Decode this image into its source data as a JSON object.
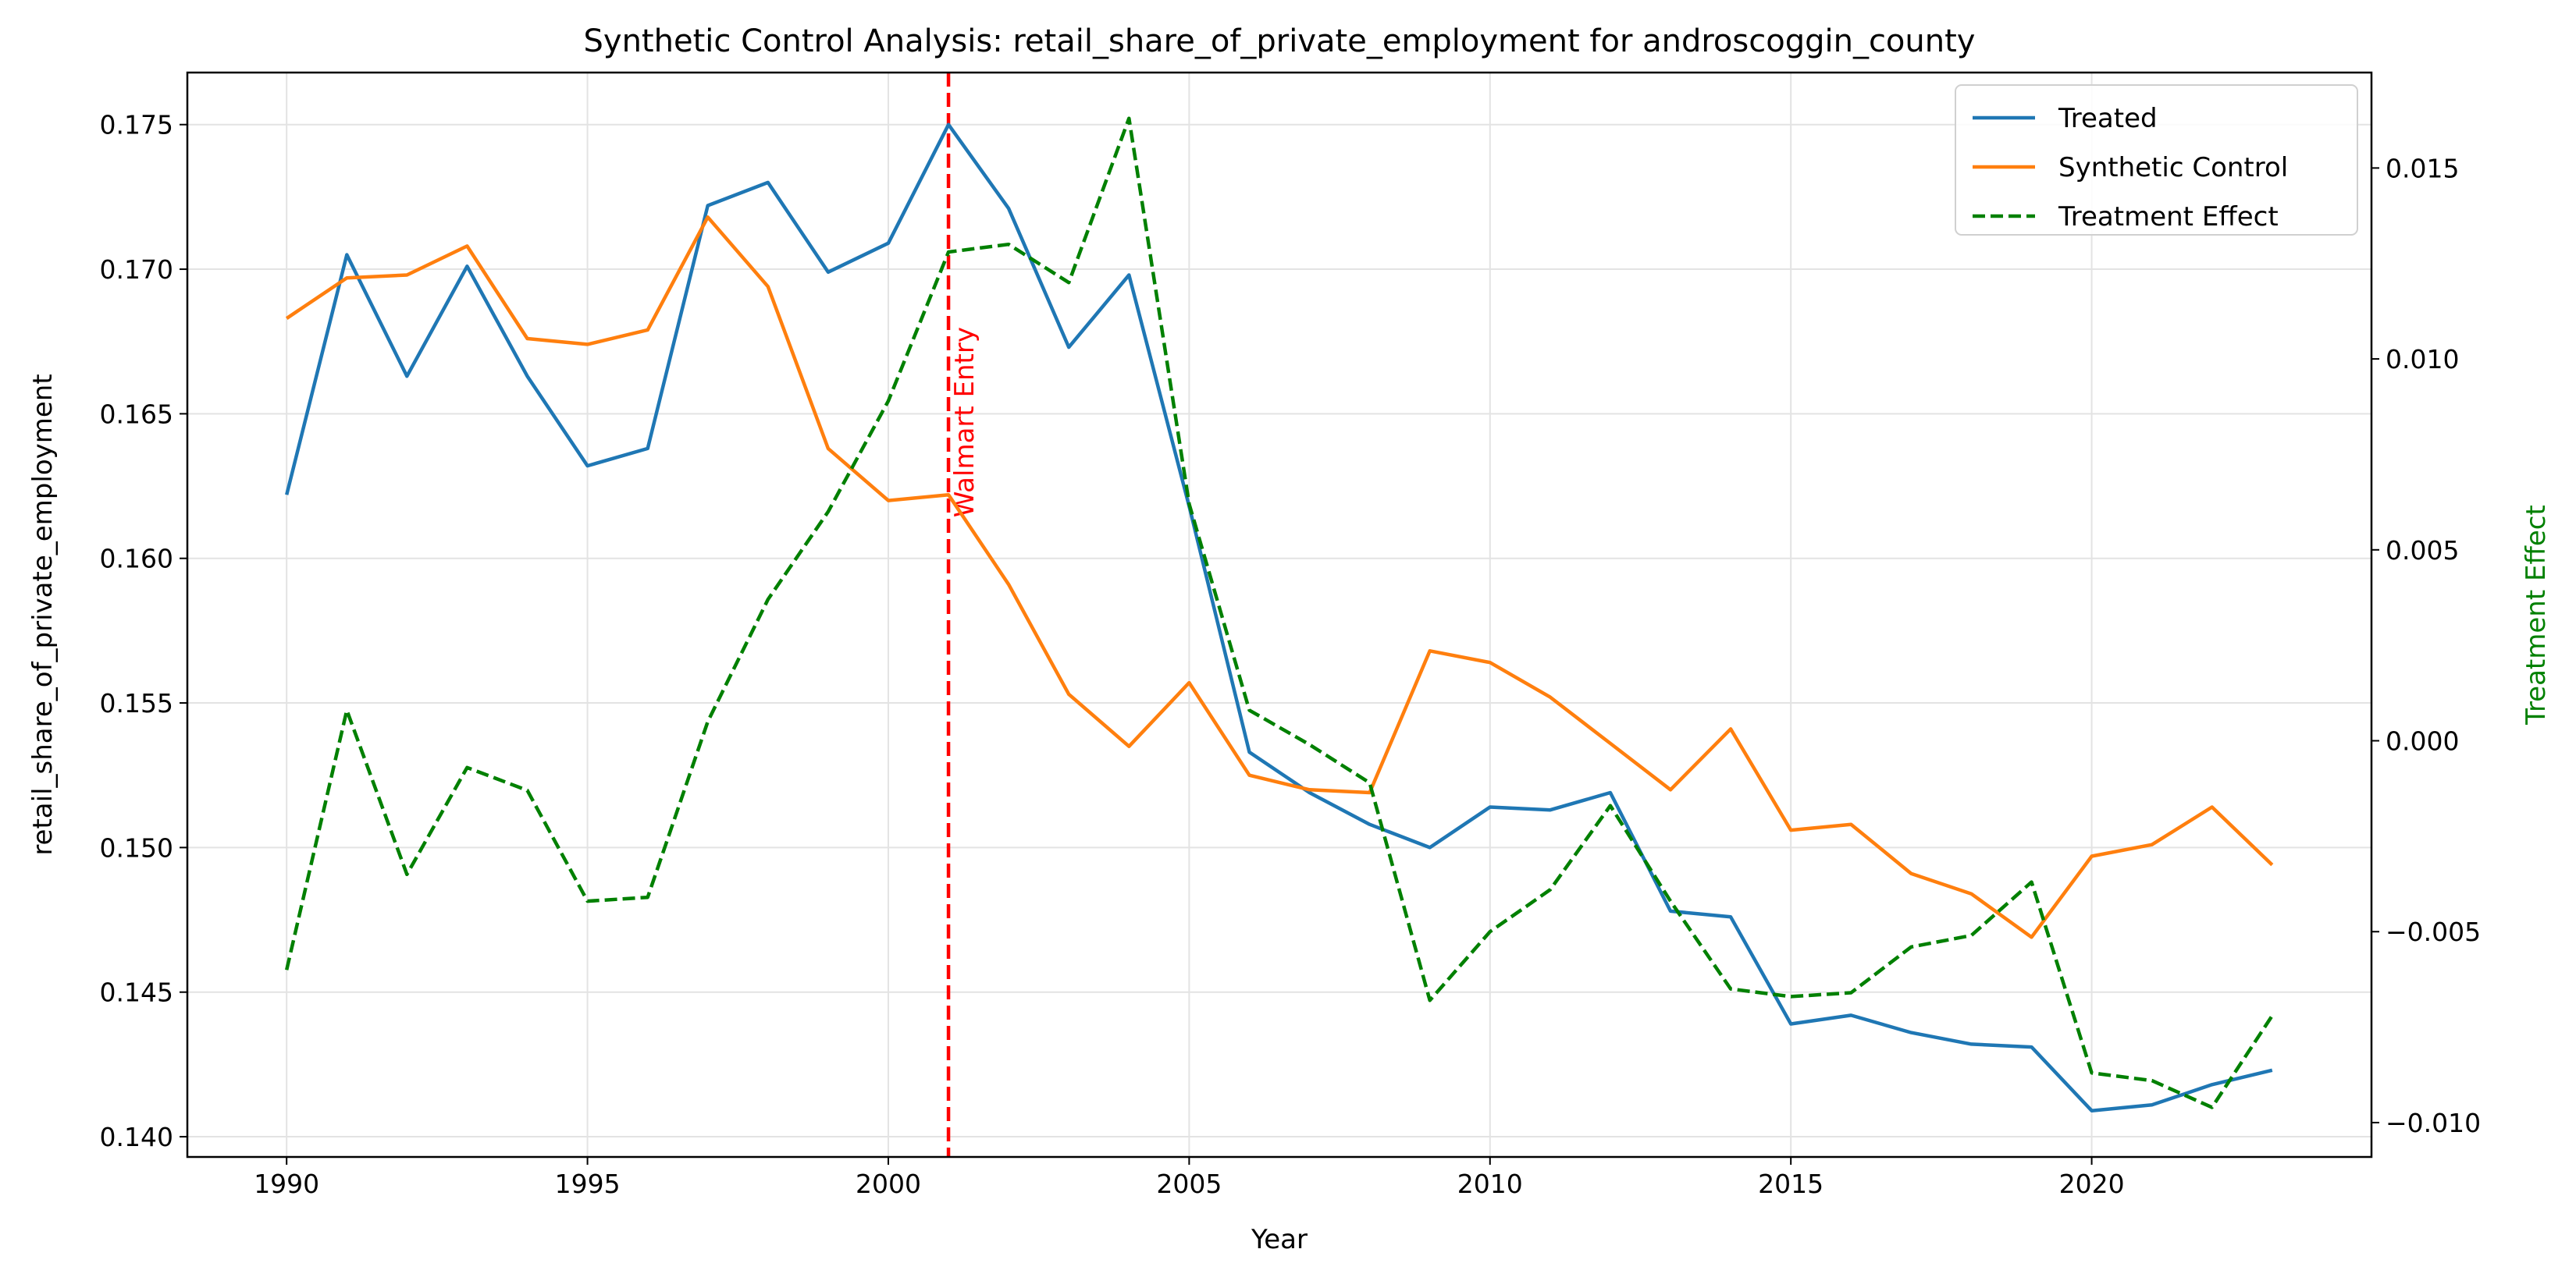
{
  "chart_data": {
    "type": "line",
    "title": "Synthetic Control Analysis: retail_share_of_private_employment for androscoggin_county",
    "xlabel": "Year",
    "ylabel": "retail_share_of_private_employment",
    "y2label": "Treatment Effect",
    "xlim": [
      1988.35,
      2024.65
    ],
    "ylim": [
      0.1393,
      0.1768
    ],
    "y2lim": [
      -0.0109,
      0.0175
    ],
    "xticks": [
      "1990",
      "1995",
      "2000",
      "2005",
      "2010",
      "2015",
      "2020"
    ],
    "yticks": [
      "0.140",
      "0.145",
      "0.150",
      "0.155",
      "0.160",
      "0.165",
      "0.170",
      "0.175"
    ],
    "y2ticks": [
      "−0.010",
      "−0.005",
      "0.000",
      "0.005",
      "0.010",
      "0.015"
    ],
    "grid": true,
    "legend_placement": "upper-right",
    "x": [
      1990,
      1991,
      1992,
      1993,
      1994,
      1995,
      1996,
      1997,
      1998,
      1999,
      2000,
      2001,
      2002,
      2003,
      2004,
      2005,
      2006,
      2007,
      2008,
      2009,
      2010,
      2011,
      2012,
      2013,
      2014,
      2015,
      2016,
      2017,
      2018,
      2019,
      2020,
      2021,
      2022,
      2023
    ],
    "series": [
      {
        "name": "Treated",
        "axis": "left",
        "color": "#1f77b4",
        "dash": "solid",
        "values": [
          0.1622,
          0.1705,
          0.1663,
          0.1701,
          0.1663,
          0.1632,
          0.1638,
          0.1722,
          0.173,
          0.1699,
          0.1709,
          0.175,
          0.1721,
          0.1673,
          0.1698,
          0.1618,
          0.1533,
          0.1519,
          0.1508,
          0.15,
          0.1514,
          0.1513,
          0.1519,
          0.1478,
          0.1476,
          0.1439,
          0.1442,
          0.1436,
          0.1432,
          0.1431,
          0.1409,
          0.1411,
          0.1418,
          0.1423
        ]
      },
      {
        "name": "Synthetic Control",
        "axis": "left",
        "color": "#ff7f0e",
        "dash": "solid",
        "values": [
          0.1683,
          0.1697,
          0.1698,
          0.1708,
          0.1676,
          0.1674,
          0.1679,
          0.1718,
          0.1694,
          0.1638,
          0.162,
          0.1622,
          0.1591,
          0.1553,
          0.1535,
          0.1557,
          0.1525,
          0.152,
          0.1519,
          0.1568,
          0.1564,
          0.1552,
          0.1536,
          0.152,
          0.1541,
          0.1506,
          0.1508,
          0.1491,
          0.1484,
          0.1469,
          0.1497,
          0.1501,
          0.1514,
          0.1494
        ]
      },
      {
        "name": "Treatment Effect",
        "axis": "right",
        "color": "#008000",
        "dash": "dashed",
        "values": [
          -0.006,
          0.0008,
          -0.0035,
          -0.0007,
          -0.0013,
          -0.0042,
          -0.0041,
          0.0005,
          0.0037,
          0.006,
          0.0089,
          0.0128,
          0.013,
          0.012,
          0.0163,
          0.0062,
          0.0008,
          -0.0001,
          -0.0011,
          -0.0068,
          -0.005,
          -0.0039,
          -0.0017,
          -0.0042,
          -0.0065,
          -0.0067,
          -0.0066,
          -0.0054,
          -0.0051,
          -0.0037,
          -0.0087,
          -0.0089,
          -0.0096,
          -0.0072
        ]
      }
    ],
    "annotation": {
      "label": "Walmart Entry",
      "x": 2001,
      "color": "#ff0000",
      "style": "dashed vertical line"
    }
  }
}
